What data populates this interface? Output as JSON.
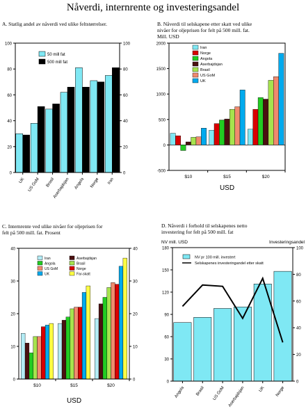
{
  "title": "Nåverdi, internrente og investeringsandel",
  "colors": {
    "cyan": "#7fe8f4",
    "black": "#000000",
    "red": "#d90000",
    "green": "#22cc22",
    "darkbrown": "#4a1010",
    "lightgreen": "#a6e34d",
    "salmon": "#f08a6e",
    "blue": "#00aaee",
    "yellow": "#ffff44",
    "lightcyan": "#b3ecf5"
  },
  "chart_data": [
    {
      "id": "A",
      "type": "bar",
      "title": "A.  Statlig andel av nåverdi ved ulike feltstørrelser.",
      "categories": [
        "UK",
        "US GoM",
        "Brasil",
        "Aserbajdsjan",
        "Angola",
        "Norge",
        "Iran"
      ],
      "series": [
        {
          "name": "50 mill fat",
          "color": "cyan",
          "values": [
            30,
            38,
            49,
            62,
            81,
            71,
            75
          ]
        },
        {
          "name": "500 mill fat",
          "color": "black",
          "values": [
            29,
            51,
            53,
            66,
            66,
            70,
            81
          ]
        }
      ],
      "ylim": [
        0,
        100
      ],
      "yticks": [
        0,
        20,
        40,
        60,
        80,
        100
      ],
      "y2ticks": [
        0,
        20,
        40,
        60,
        80,
        100
      ],
      "legend_position": "top-left"
    },
    {
      "id": "B",
      "type": "bar",
      "title_lines": [
        "B.  Nåverdi til selskapene etter skatt ved ulike",
        "nivåer for oljeprisen for felt på 500 mill. fat.",
        "Mill. USD"
      ],
      "categories": [
        "$10",
        "$15",
        "$20"
      ],
      "xlabel": "USD",
      "series": [
        {
          "name": "Iran",
          "color": "cyan",
          "values": [
            230,
            290,
            310
          ]
        },
        {
          "name": "Norge",
          "color": "red",
          "values": [
            180,
            420,
            700
          ]
        },
        {
          "name": "Angola",
          "color": "green",
          "values": [
            -110,
            490,
            930
          ]
        },
        {
          "name": "Aserbajdsjan",
          "color": "darkbrown",
          "values": [
            60,
            510,
            900
          ]
        },
        {
          "name": "Brasil",
          "color": "lightgreen",
          "values": [
            150,
            700,
            1270
          ]
        },
        {
          "name": "US GoM",
          "color": "salmon",
          "values": [
            160,
            750,
            1340
          ]
        },
        {
          "name": "UK",
          "color": "blue",
          "values": [
            330,
            1080,
            1800
          ]
        }
      ],
      "ylim": [
        -500,
        2000
      ],
      "yticks": [
        -500,
        0,
        500,
        1000,
        1500,
        2000
      ],
      "legend_position": "top-left"
    },
    {
      "id": "C",
      "type": "bar",
      "title_lines": [
        "C.  Internrente ved ulike nivåer for oljeprisen for",
        "felt på 500 mill. fat. Prosent"
      ],
      "categories": [
        "$10",
        "$15",
        "$20"
      ],
      "xlabel": "USD",
      "series": [
        {
          "name": "Iran",
          "color": "lightcyan",
          "values": [
            14,
            17,
            18.5
          ]
        },
        {
          "name": "Aserbajdsjan",
          "color": "darkbrown",
          "values": [
            11,
            18,
            23
          ]
        },
        {
          "name": "Angola",
          "color": "green",
          "values": [
            8,
            19,
            25
          ]
        },
        {
          "name": "Brasil",
          "color": "lightgreen",
          "values": [
            13,
            21.5,
            28
          ]
        },
        {
          "name": "US GoM",
          "color": "salmon",
          "values": [
            13,
            22,
            29.5
          ]
        },
        {
          "name": "Norge",
          "color": "red",
          "values": [
            16,
            22,
            29
          ]
        },
        {
          "name": "UK",
          "color": "blue",
          "values": [
            16.5,
            26.5,
            34.5
          ]
        },
        {
          "name": "Far-skatt",
          "color": "yellow",
          "values": [
            17,
            28.5,
            37
          ]
        }
      ],
      "ylim": [
        0,
        40
      ],
      "yticks": [
        0,
        10,
        20,
        30,
        40
      ],
      "y2ticks": [
        0,
        10,
        20,
        30,
        40
      ],
      "legend_position": "top-left"
    },
    {
      "id": "D",
      "type": "bar",
      "title_lines": [
        "D.  Nåverdi i forhold til selskapenes netto",
        "investering for felt på 500 mill. fat"
      ],
      "ylabel": "NV mill. USD",
      "y2label": "Investeringsandel",
      "categories": [
        "Angola",
        "Brasil",
        "US GoM",
        "Aserbajdsjan",
        "UK",
        "Norge"
      ],
      "series": [
        {
          "name": "NV pr 100 mill. investert",
          "color": "cyan",
          "kind": "bar",
          "axis": "left",
          "values": [
            79,
            86,
            98,
            100,
            131,
            148
          ]
        },
        {
          "name": "Selskapenes investeringandel etter skatt",
          "color": "black",
          "kind": "line",
          "axis": "right",
          "values": [
            56,
            72,
            71,
            47,
            77,
            29
          ]
        }
      ],
      "ylim": [
        0,
        180
      ],
      "yticks": [
        0,
        30,
        60,
        90,
        120,
        150,
        180
      ],
      "y2lim": [
        0,
        100
      ],
      "y2ticks": [
        0,
        20,
        40,
        60,
        80,
        100
      ],
      "legend_position": "top"
    }
  ]
}
